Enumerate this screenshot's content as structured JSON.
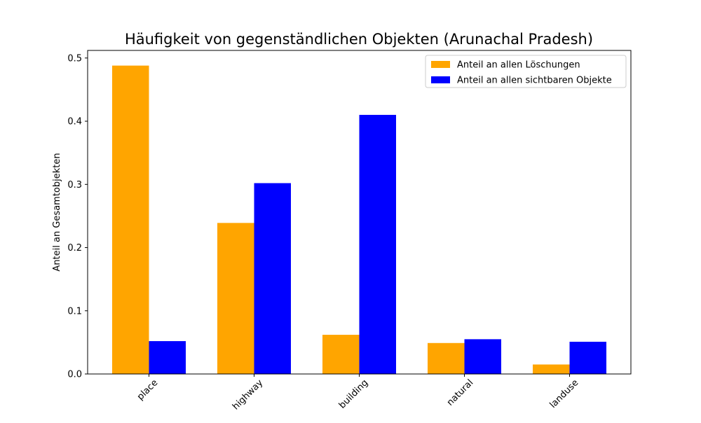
{
  "chart_data": {
    "type": "bar",
    "title": "Häufigkeit von gegenständlichen Objekten (Arunachal Pradesh)",
    "xlabel": "",
    "ylabel": "Anteil an Gesamtobjekten",
    "categories": [
      "place",
      "highway",
      "building",
      "natural",
      "landuse"
    ],
    "series": [
      {
        "name": "Anteil an allen Löschungen",
        "color": "#FFA500",
        "values": [
          0.488,
          0.239,
          0.062,
          0.049,
          0.015
        ]
      },
      {
        "name": "Anteil an allen sichtbaren Objekte",
        "color": "#0000FF",
        "values": [
          0.052,
          0.302,
          0.41,
          0.055,
          0.051
        ]
      }
    ],
    "ylim": [
      0,
      0.512
    ],
    "yticks": [
      0.0,
      0.1,
      0.2,
      0.3,
      0.4,
      0.5
    ],
    "ytick_labels": [
      "0.0",
      "0.1",
      "0.2",
      "0.3",
      "0.4",
      "0.5"
    ],
    "xtick_rotation": 45,
    "grid": false,
    "legend_position": "top-right"
  }
}
